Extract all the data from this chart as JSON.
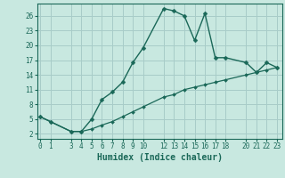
{
  "xlabel": "Humidex (Indice chaleur)",
  "background_color": "#c8e8e0",
  "grid_color": "#a8ccc8",
  "line_color": "#1a6858",
  "x_upper": [
    0,
    1,
    3,
    4,
    5,
    6,
    7,
    8,
    9,
    10,
    12,
    13,
    14,
    15,
    16,
    17,
    18,
    20,
    21,
    22,
    23
  ],
  "y_upper": [
    5.5,
    4.5,
    2.5,
    2.5,
    5.0,
    9.0,
    10.5,
    12.5,
    16.5,
    19.5,
    27.5,
    27.0,
    26.0,
    21.0,
    26.5,
    17.5,
    17.5,
    16.5,
    14.5,
    16.5,
    15.5
  ],
  "x_lower": [
    0,
    1,
    3,
    4,
    5,
    6,
    7,
    8,
    9,
    10,
    12,
    13,
    14,
    15,
    16,
    17,
    18,
    20,
    21,
    22,
    23
  ],
  "y_lower": [
    5.5,
    4.5,
    2.5,
    2.5,
    3.0,
    3.8,
    4.5,
    5.5,
    6.5,
    7.5,
    9.5,
    10.0,
    11.0,
    11.5,
    12.0,
    12.5,
    13.0,
    14.0,
    14.5,
    15.0,
    15.5
  ],
  "xlim": [
    -0.3,
    23.5
  ],
  "ylim": [
    1.0,
    28.5
  ],
  "yticks": [
    2,
    5,
    8,
    11,
    14,
    17,
    20,
    23,
    26
  ],
  "xticks": [
    0,
    1,
    3,
    4,
    5,
    6,
    7,
    8,
    9,
    10,
    12,
    13,
    14,
    15,
    16,
    17,
    18,
    20,
    21,
    22,
    23
  ],
  "tick_fontsize": 5.5,
  "xlabel_fontsize": 7
}
